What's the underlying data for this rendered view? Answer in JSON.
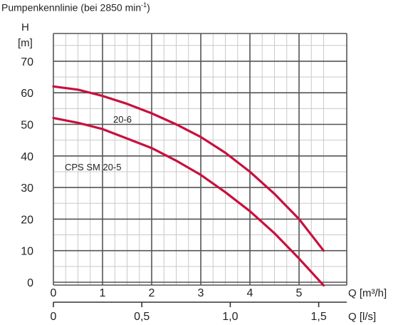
{
  "caption": {
    "prefix": "Pumpenkennlinie  (bei 2850 min",
    "superscript": "-1",
    "suffix": ")"
  },
  "chart_data": {
    "type": "line",
    "ylabel_line1": "H",
    "ylabel_line2": "[m]",
    "xlabel_primary": "Q [m³/h]",
    "xlabel_secondary": "Q [l/s]",
    "xlim": [
      0,
      5.5
    ],
    "ylim": [
      0,
      75
    ],
    "x_ticks": [
      {
        "value": 0,
        "label": "0"
      },
      {
        "value": 1,
        "label": "1"
      },
      {
        "value": 2,
        "label": "2"
      },
      {
        "value": 3,
        "label": "3"
      },
      {
        "value": 4,
        "label": "4"
      },
      {
        "value": 5,
        "label": "5"
      }
    ],
    "y_ticks": [
      {
        "value": 0,
        "label": "0"
      },
      {
        "value": 10,
        "label": "10"
      },
      {
        "value": 20,
        "label": "20"
      },
      {
        "value": 30,
        "label": "30"
      },
      {
        "value": 40,
        "label": "40"
      },
      {
        "value": 50,
        "label": "50"
      },
      {
        "value": 60,
        "label": "60"
      },
      {
        "value": 70,
        "label": "70"
      }
    ],
    "secondary_x_ticks": [
      {
        "value": 0,
        "label": "0"
      },
      {
        "value": 0.5,
        "label": "0,5"
      },
      {
        "value": 1.0,
        "label": "1,0"
      },
      {
        "value": 1.5,
        "label": "1,5"
      }
    ],
    "secondary_axis_factor_m3h_per_ls": 3.6,
    "grid": true,
    "line_color": "#c8103e",
    "grid_color": "#555555",
    "series": [
      {
        "name": "20-6",
        "x": [
          0,
          0.5,
          1,
          1.5,
          2,
          2.5,
          3,
          3.5,
          4,
          4.5,
          5,
          5.5
        ],
        "y": [
          62,
          61,
          59,
          56.5,
          53.5,
          50,
          46,
          41,
          35,
          28,
          20,
          10
        ]
      },
      {
        "name": "CPS SM 20-5",
        "x": [
          0,
          0.5,
          1,
          1.5,
          2,
          2.5,
          3,
          3.5,
          4,
          4.5,
          5,
          5.5
        ],
        "y": [
          52,
          50.5,
          48.5,
          45.5,
          42.5,
          38.5,
          34,
          28.5,
          22.5,
          15.5,
          7.5,
          -1
        ]
      }
    ]
  }
}
